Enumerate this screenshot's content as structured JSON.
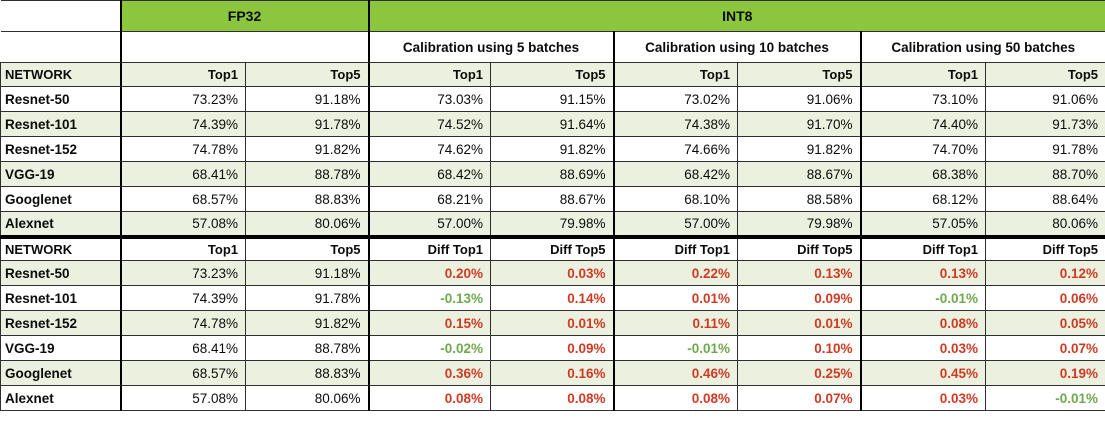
{
  "colors": {
    "header_green": "#8CC63F",
    "row_band_green": "#EBF1DE",
    "diff_positive_red": "#CE3B24",
    "diff_negative_green": "#6FA84F"
  },
  "table": {
    "group_headers": {
      "fp32": "FP32",
      "int8": "INT8"
    },
    "calibration_headers": [
      "Calibration using 5 batches",
      "Calibration using 10 batches",
      "Calibration using 50 batches"
    ],
    "section1": {
      "network_header": "NETWORK",
      "col_headers": [
        "Top1",
        "Top5",
        "Top1",
        "Top5",
        "Top1",
        "Top5",
        "Top1",
        "Top5"
      ],
      "rows": [
        {
          "network": "Resnet-50",
          "values": [
            "73.23%",
            "91.18%",
            "73.03%",
            "91.15%",
            "73.02%",
            "91.06%",
            "73.10%",
            "91.06%"
          ]
        },
        {
          "network": "Resnet-101",
          "values": [
            "74.39%",
            "91.78%",
            "74.52%",
            "91.64%",
            "74.38%",
            "91.70%",
            "74.40%",
            "91.73%"
          ]
        },
        {
          "network": "Resnet-152",
          "values": [
            "74.78%",
            "91.82%",
            "74.62%",
            "91.82%",
            "74.66%",
            "91.82%",
            "74.70%",
            "91.78%"
          ]
        },
        {
          "network": "VGG-19",
          "values": [
            "68.41%",
            "88.78%",
            "68.42%",
            "88.69%",
            "68.42%",
            "88.67%",
            "68.38%",
            "88.70%"
          ]
        },
        {
          "network": "Googlenet",
          "values": [
            "68.57%",
            "88.83%",
            "68.21%",
            "88.67%",
            "68.10%",
            "88.58%",
            "68.12%",
            "88.64%"
          ]
        },
        {
          "network": "Alexnet",
          "values": [
            "57.08%",
            "80.06%",
            "57.00%",
            "79.98%",
            "57.00%",
            "79.98%",
            "57.05%",
            "80.06%"
          ]
        }
      ]
    },
    "section2": {
      "network_header": "NETWORK",
      "col_headers": [
        "Top1",
        "Top5",
        "Diff Top1",
        "Diff Top5",
        "Diff Top1",
        "Diff Top5",
        "Diff Top1",
        "Diff Top5"
      ],
      "rows": [
        {
          "network": "Resnet-50",
          "fp32": [
            "73.23%",
            "91.18%"
          ],
          "diffs": [
            "0.20%",
            "0.03%",
            "0.22%",
            "0.13%",
            "0.13%",
            "0.12%"
          ]
        },
        {
          "network": "Resnet-101",
          "fp32": [
            "74.39%",
            "91.78%"
          ],
          "diffs": [
            "-0.13%",
            "0.14%",
            "0.01%",
            "0.09%",
            "-0.01%",
            "0.06%"
          ]
        },
        {
          "network": "Resnet-152",
          "fp32": [
            "74.78%",
            "91.82%"
          ],
          "diffs": [
            "0.15%",
            "0.01%",
            "0.11%",
            "0.01%",
            "0.08%",
            "0.05%"
          ]
        },
        {
          "network": "VGG-19",
          "fp32": [
            "68.41%",
            "88.78%"
          ],
          "diffs": [
            "-0.02%",
            "0.09%",
            "-0.01%",
            "0.10%",
            "0.03%",
            "0.07%"
          ]
        },
        {
          "network": "Googlenet",
          "fp32": [
            "68.57%",
            "88.83%"
          ],
          "diffs": [
            "0.36%",
            "0.16%",
            "0.46%",
            "0.25%",
            "0.45%",
            "0.19%"
          ]
        },
        {
          "network": "Alexnet",
          "fp32": [
            "57.08%",
            "80.06%"
          ],
          "diffs": [
            "0.08%",
            "0.08%",
            "0.08%",
            "0.07%",
            "0.03%",
            "-0.01%"
          ]
        }
      ]
    }
  }
}
